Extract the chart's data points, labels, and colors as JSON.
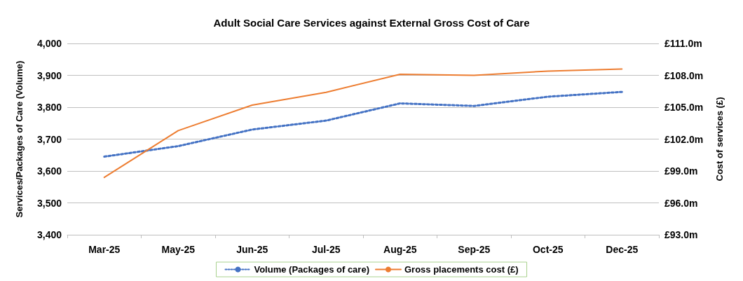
{
  "chart_data": {
    "type": "line",
    "title": "Adult Social Care Services against External Gross Cost of Care",
    "ylabel": "Services/Packages of Care (Volume)",
    "y2label": "Cost of services (£)",
    "categories": [
      "Mar-25",
      "May-25",
      "Jun-25",
      "Jul-25",
      "Aug-25",
      "Sep-25",
      "Oct-25",
      "Dec-25"
    ],
    "series": [
      {
        "name": "Volume (Packages of care)",
        "color": "#4472c4",
        "line_style": "dotted",
        "values": [
          3645,
          3678,
          3730,
          3758,
          3812,
          3804,
          3833,
          3848
        ]
      },
      {
        "name": "Gross placements cost (£)",
        "color": "#ed7d31",
        "line_style": "solid",
        "axis": "y2",
        "values": [
          98.4,
          102.8,
          105.2,
          106.4,
          108.1,
          108.0,
          108.4,
          108.6
        ]
      }
    ],
    "ylim": [
      3400,
      4000
    ],
    "yticks": [
      {
        "value": 3400,
        "label": "3,400"
      },
      {
        "value": 3500,
        "label": "3,500"
      },
      {
        "value": 3600,
        "label": "3,600"
      },
      {
        "value": 3700,
        "label": "3,700"
      },
      {
        "value": 3800,
        "label": "3,800"
      },
      {
        "value": 3900,
        "label": "3,900"
      },
      {
        "value": 4000,
        "label": "4,000"
      }
    ],
    "y2lim": [
      93,
      111
    ],
    "y2ticks": [
      {
        "value": 93,
        "label": "£93.0m"
      },
      {
        "value": 96,
        "label": "£96.0m"
      },
      {
        "value": 99,
        "label": "£99.0m"
      },
      {
        "value": 102,
        "label": "£102.0m"
      },
      {
        "value": 105,
        "label": "£105.0m"
      },
      {
        "value": 108,
        "label": "£108.0m"
      },
      {
        "value": 111,
        "label": "£111.0m"
      }
    ],
    "grid": "y",
    "legend": "bottom",
    "marker": "none"
  }
}
